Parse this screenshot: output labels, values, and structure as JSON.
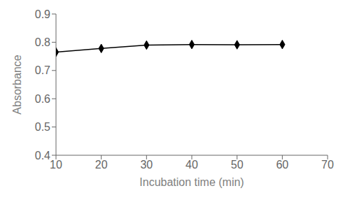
{
  "chart_data": {
    "type": "line",
    "x": [
      10,
      20,
      30,
      40,
      50,
      60
    ],
    "values": [
      0.765,
      0.778,
      0.79,
      0.792,
      0.791,
      0.792
    ],
    "xlim": [
      10,
      70
    ],
    "ylim": [
      0.4,
      0.9
    ],
    "xticks": [
      10,
      20,
      30,
      40,
      50,
      60,
      70
    ],
    "yticks": [
      0.4,
      0.5,
      0.6,
      0.7,
      0.8,
      0.9
    ],
    "xlabel": "Incubation time (min)",
    "ylabel": "Absorbance",
    "color": "#000000",
    "marker": "diamond",
    "grid": false
  }
}
